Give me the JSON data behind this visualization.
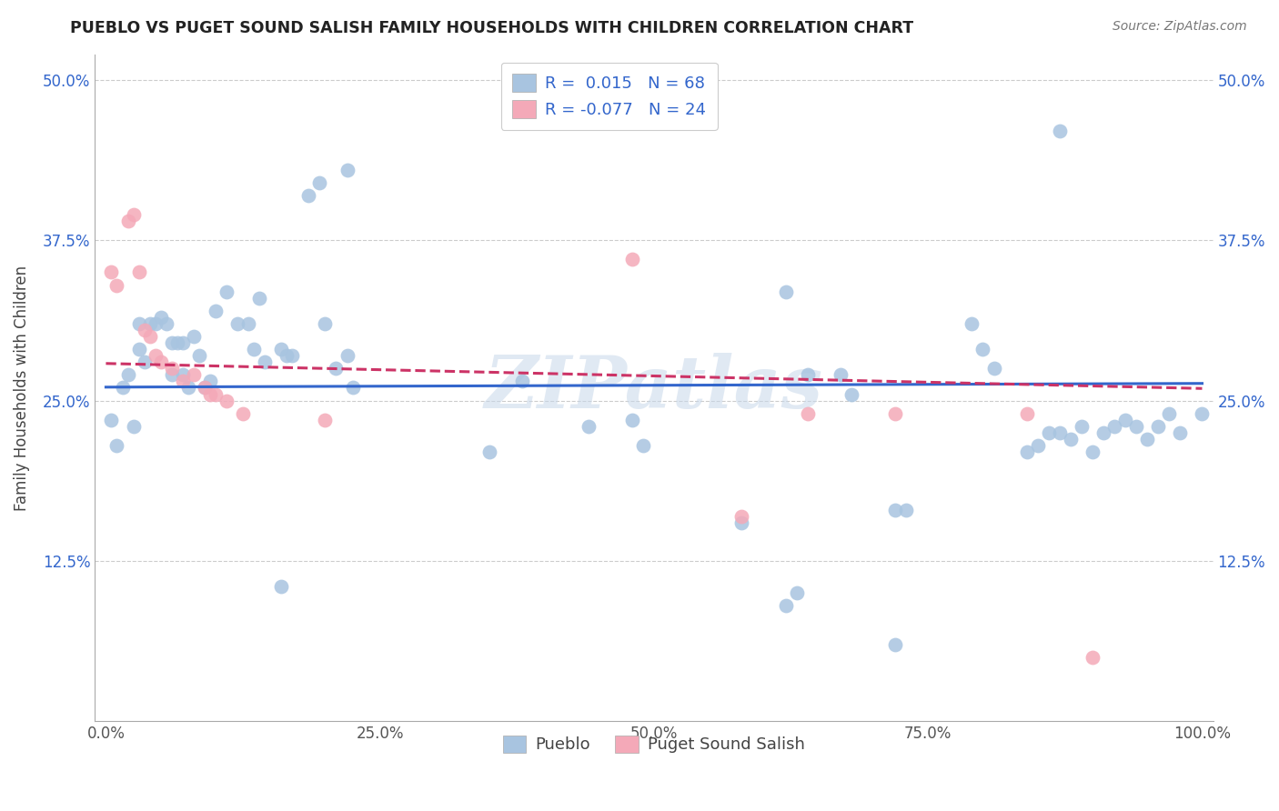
{
  "title": "PUEBLO VS PUGET SOUND SALISH FAMILY HOUSEHOLDS WITH CHILDREN CORRELATION CHART",
  "source": "Source: ZipAtlas.com",
  "ylabel": "Family Households with Children",
  "xlabel": "",
  "legend_label1": "Pueblo",
  "legend_label2": "Puget Sound Salish",
  "r1": 0.015,
  "n1": 68,
  "r2": -0.077,
  "n2": 24,
  "xlim": [
    -0.01,
    1.01
  ],
  "ylim": [
    0.0,
    0.52
  ],
  "xticks": [
    0.0,
    0.25,
    0.5,
    0.75,
    1.0
  ],
  "yticks": [
    0.125,
    0.25,
    0.375,
    0.5
  ],
  "xticklabels": [
    "0.0%",
    "25.0%",
    "50.0%",
    "75.0%",
    "100.0%"
  ],
  "yticklabels": [
    "12.5%",
    "25.0%",
    "37.5%",
    "50.0%"
  ],
  "color1": "#a8c4e0",
  "color2": "#f4a9b8",
  "line_color1": "#3366cc",
  "line_color2": "#cc3366",
  "watermark": "ZIPatlas",
  "background_color": "#ffffff",
  "pueblo_x": [
    0.005,
    0.01,
    0.015,
    0.02,
    0.025,
    0.03,
    0.03,
    0.035,
    0.04,
    0.045,
    0.05,
    0.055,
    0.06,
    0.06,
    0.065,
    0.07,
    0.07,
    0.075,
    0.08,
    0.085,
    0.09,
    0.095,
    0.1,
    0.11,
    0.12,
    0.13,
    0.135,
    0.14,
    0.145,
    0.16,
    0.165,
    0.17,
    0.2,
    0.21,
    0.22,
    0.225,
    0.35,
    0.38,
    0.44,
    0.48,
    0.49,
    0.58,
    0.62,
    0.64,
    0.67,
    0.68,
    0.72,
    0.73,
    0.79,
    0.8,
    0.81,
    0.84,
    0.85,
    0.86,
    0.87,
    0.88,
    0.89,
    0.9,
    0.91,
    0.92,
    0.93,
    0.94,
    0.95,
    0.96,
    0.97,
    0.98,
    1.0
  ],
  "pueblo_y": [
    0.235,
    0.215,
    0.26,
    0.27,
    0.23,
    0.29,
    0.31,
    0.28,
    0.31,
    0.31,
    0.315,
    0.31,
    0.295,
    0.27,
    0.295,
    0.295,
    0.27,
    0.26,
    0.3,
    0.285,
    0.26,
    0.265,
    0.32,
    0.335,
    0.31,
    0.31,
    0.29,
    0.33,
    0.28,
    0.29,
    0.285,
    0.285,
    0.31,
    0.275,
    0.285,
    0.26,
    0.21,
    0.265,
    0.23,
    0.235,
    0.215,
    0.155,
    0.335,
    0.27,
    0.27,
    0.255,
    0.165,
    0.165,
    0.31,
    0.29,
    0.275,
    0.21,
    0.215,
    0.225,
    0.225,
    0.22,
    0.23,
    0.21,
    0.225,
    0.23,
    0.235,
    0.23,
    0.22,
    0.23,
    0.24,
    0.225,
    0.24
  ],
  "pueblo_y_outliers": [
    0.46,
    0.43,
    0.42,
    0.41,
    0.06,
    0.09,
    0.1,
    0.105
  ],
  "pueblo_x_outliers": [
    0.87,
    0.22,
    0.195,
    0.185,
    0.72,
    0.62,
    0.63,
    0.16
  ],
  "salish_x": [
    0.005,
    0.01,
    0.02,
    0.025,
    0.03,
    0.035,
    0.04,
    0.045,
    0.05,
    0.06,
    0.07,
    0.08,
    0.09,
    0.095,
    0.1,
    0.11,
    0.125,
    0.2,
    0.48,
    0.58,
    0.64,
    0.72,
    0.84,
    0.9
  ],
  "salish_y": [
    0.35,
    0.34,
    0.39,
    0.395,
    0.35,
    0.305,
    0.3,
    0.285,
    0.28,
    0.275,
    0.265,
    0.27,
    0.26,
    0.255,
    0.255,
    0.25,
    0.24,
    0.235,
    0.36,
    0.16,
    0.24,
    0.24,
    0.24,
    0.05
  ]
}
